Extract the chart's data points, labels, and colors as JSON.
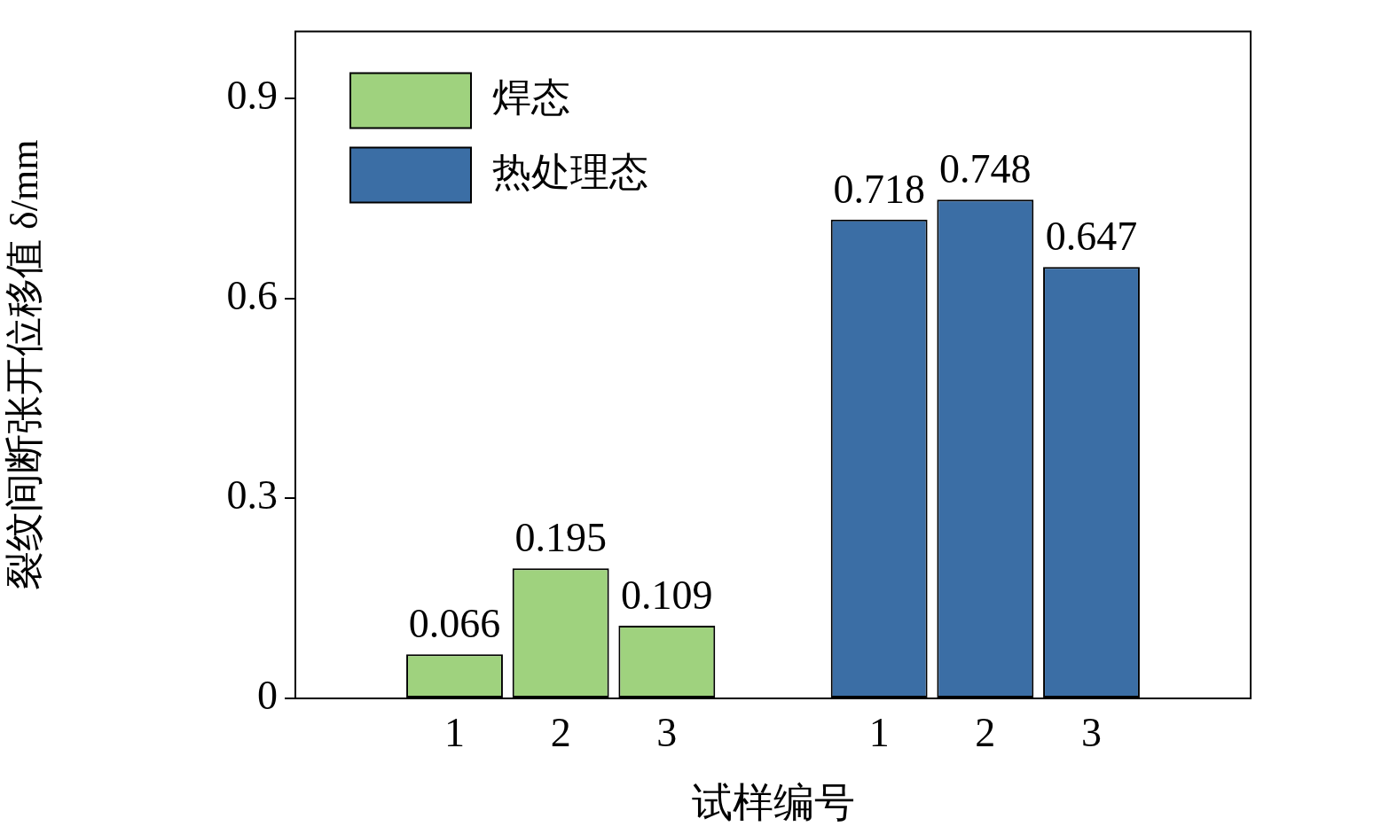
{
  "chart_data": {
    "type": "bar",
    "xlabel": "试样编号",
    "ylabel": "裂纹间断张开位移值 δ/mm",
    "categories": [
      null,
      "1",
      "2",
      "3",
      null,
      "1",
      "2",
      "3",
      null
    ],
    "series": [
      {
        "name": "焊态",
        "color": "#9fd27e",
        "values": [
          null,
          0.066,
          0.195,
          0.109,
          null,
          null,
          null,
          null,
          null
        ]
      },
      {
        "name": "热处理态",
        "color": "#3b6ea5",
        "values": [
          null,
          null,
          null,
          null,
          null,
          0.718,
          0.748,
          0.647,
          null
        ]
      }
    ],
    "ylim": [
      0,
      1
    ],
    "yticks": [
      0,
      0.3,
      0.6,
      0.9
    ],
    "grid": false,
    "legend": "top left",
    "data_labels": true
  }
}
